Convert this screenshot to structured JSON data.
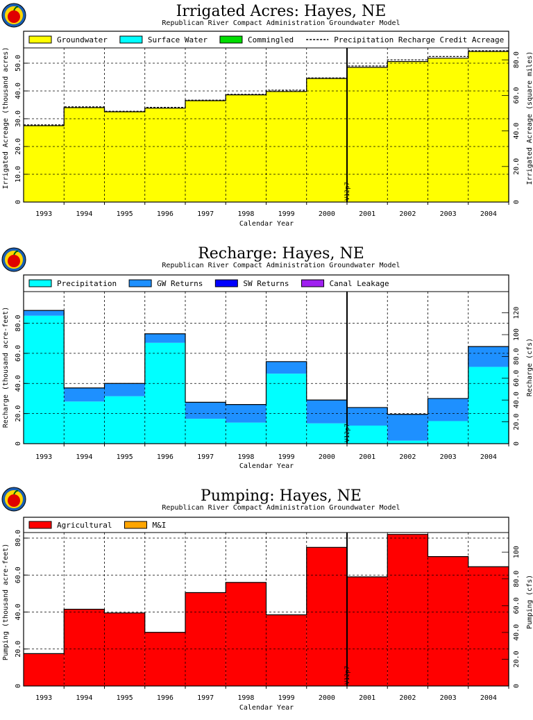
{
  "charts": [
    {
      "title": "Irrigated Acres: Hayes, NE",
      "subtitle": "Republican River Compact Administration Groundwater Model",
      "xlabel": "Calendar Year",
      "ylabel_left": "Irrigated Acreage (thousand acres)",
      "ylabel_right": "Irrigated Acreage (square miles)",
      "marker_label": "V12p7",
      "legend": [
        {
          "label": "Groundwater",
          "color": "#ffff00",
          "kind": "box"
        },
        {
          "label": "Surface Water",
          "color": "#00ffff",
          "kind": "box"
        },
        {
          "label": "Commingled",
          "color": "#00dd00",
          "kind": "box"
        },
        {
          "label": "Precipitation Recharge Credit Acreage",
          "color": "#000000",
          "kind": "dash"
        }
      ]
    },
    {
      "title": "Recharge: Hayes, NE",
      "subtitle": "Republican River Compact Administration Groundwater Model",
      "xlabel": "Calendar Year",
      "ylabel_left": "Recharge (thousand acre-feet)",
      "ylabel_right": "Recharge (cfs)",
      "marker_label": "V12p7",
      "legend": [
        {
          "label": "Precipitation",
          "color": "#00ffff",
          "kind": "box"
        },
        {
          "label": "GW Returns",
          "color": "#1e90ff",
          "kind": "box"
        },
        {
          "label": "SW Returns",
          "color": "#0000ff",
          "kind": "box"
        },
        {
          "label": "Canal Leakage",
          "color": "#a020f0",
          "kind": "box"
        }
      ]
    },
    {
      "title": "Pumping: Hayes, NE",
      "subtitle": "Republican River Compact Administration Groundwater Model",
      "xlabel": "Calendar Year",
      "ylabel_left": "Pumping (thousand acre-feet)",
      "ylabel_right": "Pumping (cfs)",
      "marker_label": "V12p7",
      "legend": [
        {
          "label": "Agricultural",
          "color": "#ff0000",
          "kind": "box"
        },
        {
          "label": "M&I",
          "color": "#ffa500",
          "kind": "box"
        }
      ]
    }
  ],
  "chart_data": [
    {
      "type": "bar",
      "title": "Irrigated Acres: Hayes, NE",
      "categories": [
        "1993",
        "1994",
        "1995",
        "1996",
        "1997",
        "1998",
        "1999",
        "2000",
        "2001",
        "2002",
        "2003",
        "2004"
      ],
      "series": [
        {
          "name": "Groundwater",
          "values": [
            27.5,
            34.0,
            32.5,
            33.8,
            36.5,
            38.6,
            39.8,
            44.5,
            48.5,
            50.6,
            51.8,
            54.2
          ]
        },
        {
          "name": "Surface Water",
          "values": [
            0,
            0,
            0,
            0,
            0,
            0,
            0,
            0,
            0,
            0,
            0,
            0
          ]
        },
        {
          "name": "Commingled",
          "values": [
            0,
            0,
            0,
            0,
            0,
            0,
            0,
            0,
            0,
            0,
            0,
            0
          ]
        }
      ],
      "dashed_series": {
        "name": "Precipitation Recharge Credit Acreage",
        "values": [
          27.8,
          34.3,
          32.7,
          34.1,
          36.7,
          38.8,
          40.3,
          44.7,
          49.0,
          51.2,
          52.4,
          54.5
        ]
      },
      "ylim": [
        0,
        55.5
      ],
      "yticks": [
        0,
        10.0,
        20.0,
        30.0,
        40.0,
        50.0
      ],
      "ytick_labels": [
        "0",
        "10.0",
        "20.0",
        "30.0",
        "40.0",
        "50.0"
      ],
      "y2ticks": [
        0,
        20.0,
        40.0,
        60.0,
        80.0
      ],
      "y2tick_labels": [
        "0",
        "20.0",
        "40.0",
        "60.0",
        "80.0"
      ],
      "y2_factor": 1.5625,
      "grid": true,
      "marker_year_index": 8
    },
    {
      "type": "bar",
      "title": "Recharge: Hayes, NE",
      "categories": [
        "1993",
        "1994",
        "1995",
        "1996",
        "1997",
        "1998",
        "1999",
        "2000",
        "2001",
        "2002",
        "2003",
        "2004"
      ],
      "series": [
        {
          "name": "Precipitation",
          "values": [
            85.0,
            28.0,
            31.5,
            67.0,
            16.5,
            14.0,
            46.5,
            13.5,
            12.0,
            2.0,
            15.0,
            51.0
          ]
        },
        {
          "name": "GW Returns",
          "values": [
            3.5,
            9.0,
            8.5,
            6.0,
            11.0,
            12.0,
            8.0,
            15.5,
            12.0,
            17.5,
            15.0,
            13.5
          ]
        },
        {
          "name": "SW Returns",
          "values": [
            0,
            0,
            0,
            0,
            0,
            0,
            0,
            0,
            0,
            0,
            0,
            0
          ]
        },
        {
          "name": "Canal Leakage",
          "values": [
            0,
            0,
            0,
            0,
            0,
            0,
            0,
            0,
            0,
            0,
            0,
            0
          ]
        }
      ],
      "ylim": [
        0,
        101
      ],
      "yticks": [
        0,
        20.0,
        40.0,
        60.0,
        80.0
      ],
      "ytick_labels": [
        "0",
        "20.0",
        "40.0",
        "60.0",
        "80.0"
      ],
      "y2ticks": [
        0,
        20.0,
        40.0,
        60.0,
        80.0,
        100,
        120
      ],
      "y2tick_labels": [
        "0",
        "20.0",
        "40.0",
        "60.0",
        "80.0",
        "100",
        "120"
      ],
      "y2_factor": 1.381,
      "grid": true,
      "marker_year_index": 8
    },
    {
      "type": "bar",
      "title": "Pumping: Hayes, NE",
      "categories": [
        "1993",
        "1994",
        "1995",
        "1996",
        "1997",
        "1998",
        "1999",
        "2000",
        "2001",
        "2002",
        "2003",
        "2004"
      ],
      "series": [
        {
          "name": "Agricultural",
          "values": [
            17.5,
            41.5,
            39.5,
            29.0,
            50.5,
            56.0,
            38.5,
            75.0,
            59.0,
            82.0,
            70.0,
            64.5
          ]
        },
        {
          "name": "M&I",
          "values": [
            0,
            0,
            0,
            0,
            0,
            0,
            0,
            0,
            0,
            0,
            0,
            0
          ]
        }
      ],
      "ylim": [
        0,
        83
      ],
      "yticks": [
        0,
        20.0,
        40.0,
        60.0,
        80.0
      ],
      "ytick_labels": [
        "0",
        "20.0",
        "40.0",
        "60.0",
        "80.0"
      ],
      "y2ticks": [
        0,
        20.0,
        40.0,
        60.0,
        80.0,
        100
      ],
      "y2tick_labels": [
        "0",
        "20.0",
        "40.0",
        "60.0",
        "80.0",
        "100"
      ],
      "y2_factor": 1.381,
      "grid": true,
      "marker_year_index": 8
    }
  ]
}
